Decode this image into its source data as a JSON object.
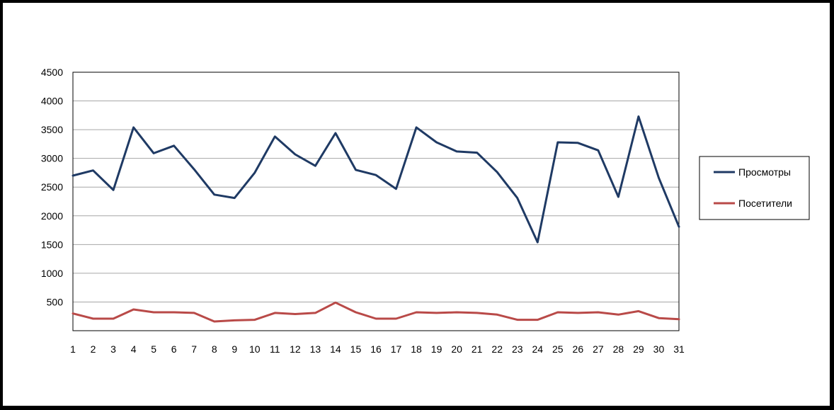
{
  "chart_data": {
    "type": "line",
    "title": "",
    "xlabel": "",
    "ylabel": "",
    "ylim": [
      0,
      4500
    ],
    "y_ticks": [
      500,
      1000,
      1500,
      2000,
      2500,
      3000,
      3500,
      4000,
      4500
    ],
    "grid": true,
    "legend_placement": "right",
    "categories": [
      "1",
      "2",
      "3",
      "4",
      "5",
      "6",
      "7",
      "8",
      "9",
      "10",
      "11",
      "12",
      "13",
      "14",
      "15",
      "16",
      "17",
      "18",
      "19",
      "20",
      "21",
      "22",
      "23",
      "24",
      "25",
      "26",
      "27",
      "28",
      "29",
      "30",
      "31"
    ],
    "series": [
      {
        "name": "Просмотры",
        "color": "#1f3a64",
        "values": [
          2700,
          2790,
          2450,
          3540,
          3090,
          3220,
          2810,
          2370,
          2310,
          2750,
          3380,
          3070,
          2870,
          3440,
          2800,
          2710,
          2470,
          3540,
          3280,
          3120,
          3100,
          2760,
          2310,
          1540,
          3280,
          3270,
          3140,
          2330,
          3730,
          2660,
          1810
        ]
      },
      {
        "name": "Посетители",
        "color": "#b94a48",
        "values": [
          300,
          210,
          210,
          370,
          320,
          320,
          310,
          160,
          180,
          190,
          310,
          290,
          310,
          490,
          320,
          210,
          210,
          320,
          310,
          320,
          310,
          280,
          190,
          190,
          320,
          310,
          320,
          280,
          340,
          220,
          200
        ]
      }
    ]
  }
}
